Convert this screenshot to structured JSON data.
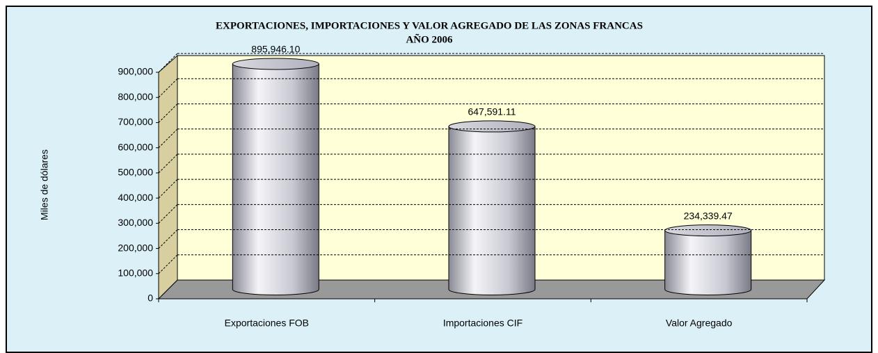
{
  "chart_data": {
    "type": "bar",
    "title": "EXPORTACIONES, IMPORTACIONES Y VALOR AGREGADO DE LAS ZONAS FRANCAS",
    "subtitle": "AÑO 2006",
    "y_label": "Miles de dólares",
    "categories": [
      "Exportaciones FOB",
      "Importaciones CIF",
      "Valor Agregado"
    ],
    "values": [
      895946.1,
      647591.11,
      234339.47
    ],
    "value_labels": [
      "895,946.10",
      "647,591.11",
      "234,339.47"
    ],
    "ylim": [
      0,
      900000
    ],
    "yticks": [
      0,
      {
        "value": 100000,
        "label": "100,000"
      },
      {
        "value": 200000,
        "label": "200,000"
      },
      {
        "value": 300000,
        "label": "300,000"
      },
      {
        "value": 400000,
        "label": "400,000"
      },
      {
        "value": 500000,
        "label": "500,000"
      },
      {
        "value": 600000,
        "label": "600,000"
      },
      {
        "value": 700000,
        "label": "700,000"
      },
      {
        "value": 800000,
        "label": "800,000"
      },
      {
        "value": 900000,
        "label": "900,000"
      }
    ],
    "grid": true
  }
}
